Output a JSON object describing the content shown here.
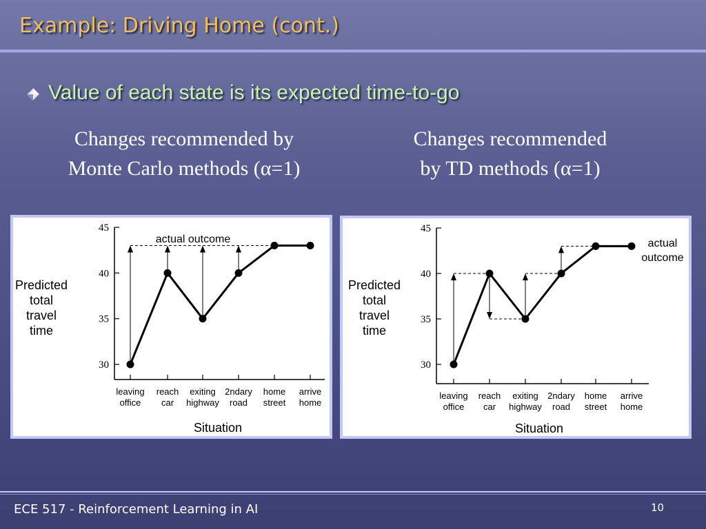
{
  "slide": {
    "title": "Example: Driving Home (cont.)",
    "bullet": "Value of each state is its expected time-to-go",
    "caption_left": [
      "Changes recommended by",
      "Monte Carlo methods (α=1)"
    ],
    "caption_right": [
      "Changes recommended",
      "by TD methods (α=1)"
    ],
    "footer": "ECE 517 - Reinforcement Learning in AI",
    "page_number": "10"
  },
  "chart_data": [
    {
      "type": "line",
      "title": "",
      "ylabel": [
        "Predicted",
        "total",
        "travel",
        "time"
      ],
      "xlabel": "Situation",
      "categories": [
        [
          "leaving",
          "office"
        ],
        [
          "reach",
          "car"
        ],
        [
          "exiting",
          "highway"
        ],
        [
          "2ndary",
          "road"
        ],
        [
          "home",
          "street"
        ],
        [
          "arrive",
          "home"
        ]
      ],
      "y_ticks": [
        30,
        35,
        40,
        45
      ],
      "ylim": [
        30,
        45
      ],
      "series": [
        {
          "values": [
            30,
            40,
            35,
            40,
            43,
            43
          ]
        }
      ],
      "target_line": 43,
      "arrows": [
        {
          "from": 30,
          "to": 43,
          "index": 0
        },
        {
          "from": 40,
          "to": 43,
          "index": 1
        },
        {
          "from": 35,
          "to": 43,
          "index": 2
        },
        {
          "from": 40,
          "to": 43,
          "index": 3
        }
      ],
      "annotation": "actual outcome"
    },
    {
      "type": "line",
      "title": "",
      "ylabel": [
        "Predicted",
        "total",
        "travel",
        "time"
      ],
      "xlabel": "Situation",
      "categories": [
        [
          "leaving",
          "office"
        ],
        [
          "reach",
          "car"
        ],
        [
          "exiting",
          "highway"
        ],
        [
          "2ndary",
          "road"
        ],
        [
          "home",
          "street"
        ],
        [
          "arrive",
          "home"
        ]
      ],
      "y_ticks": [
        30,
        35,
        40,
        45
      ],
      "ylim": [
        30,
        45
      ],
      "series": [
        {
          "values": [
            30,
            40,
            35,
            40,
            43,
            43
          ]
        }
      ],
      "dashed_segments": [
        {
          "y": 40,
          "from_index": 0,
          "to_index": 1
        },
        {
          "y": 35,
          "from_index": 1,
          "to_index": 2
        },
        {
          "y": 40,
          "from_index": 2,
          "to_index": 3
        },
        {
          "y": 43,
          "from_index": 3,
          "to_index": 4
        }
      ],
      "arrows": [
        {
          "from": 30,
          "to": 40,
          "index": 0
        },
        {
          "from": 40,
          "to": 35,
          "index": 1
        },
        {
          "from": 35,
          "to": 40,
          "index": 2
        },
        {
          "from": 40,
          "to": 43,
          "index": 3
        }
      ],
      "annotation": [
        "actual",
        "outcome"
      ]
    }
  ]
}
